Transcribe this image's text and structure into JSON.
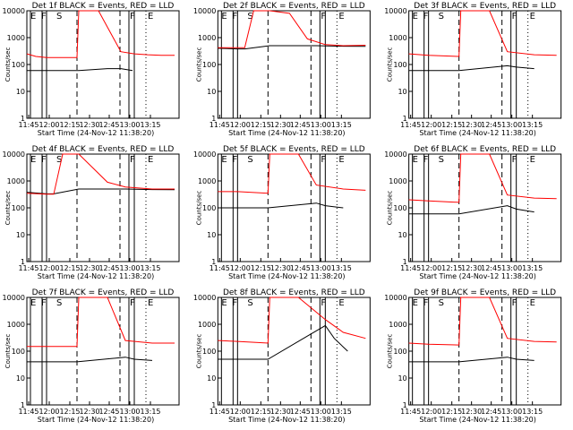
{
  "chart_data": [
    {
      "type": "line",
      "title": "Det 1f BLACK = Events, RED = LLD",
      "xlabel": "Start Time (24-Nov-12 11:38:20)",
      "ylabel": "Counts/sec",
      "x_ticks": [
        "11:45",
        "12:00",
        "12:15",
        "12:30",
        "12:45",
        "13:00",
        "13:15"
      ],
      "y_ticks": [
        "1",
        "10",
        "100",
        "1000",
        "10000"
      ],
      "ylim": [
        1,
        10000
      ],
      "log_y": true,
      "markers": [
        "E",
        "F",
        "S",
        "F",
        "E"
      ],
      "series": [
        {
          "name": "Events",
          "color": "#000000",
          "x": [
            30,
            40,
            52,
            86,
            88,
            120,
            135,
            148
          ],
          "y": [
            60,
            60,
            60,
            60,
            60,
            70,
            70,
            60
          ]
        },
        {
          "name": "LLD",
          "color": "#ff0000",
          "x": [
            30,
            40,
            52,
            86,
            88,
            110,
            135,
            150,
            165,
            180,
            195
          ],
          "y": [
            250,
            200,
            180,
            180,
            10000,
            10000,
            300,
            250,
            230,
            220,
            220
          ]
        }
      ]
    },
    {
      "type": "line",
      "title": "Det 2f BLACK = Events, RED = LLD",
      "xlabel": "Start Time (24-Nov-12 11:38:20)",
      "ylabel": "Counts/sec",
      "x_ticks": [
        "11:45",
        "12:00",
        "12:15",
        "12:30",
        "12:45",
        "13:00",
        "13:15"
      ],
      "y_ticks": [
        "1",
        "10",
        "100",
        "1000",
        "10000"
      ],
      "ylim": [
        1,
        10000
      ],
      "log_y": true,
      "markers": [
        "E",
        "F",
        "S",
        "F",
        "E"
      ],
      "series": [
        {
          "name": "Events",
          "color": "#000000",
          "x": [
            30,
            52,
            60,
            88,
            140,
            170,
            195
          ],
          "y": [
            400,
            380,
            380,
            500,
            500,
            480,
            470
          ]
        },
        {
          "name": "LLD",
          "color": "#ff0000",
          "x": [
            30,
            52,
            60,
            70,
            88,
            110,
            130,
            150,
            170,
            195
          ],
          "y": [
            420,
            420,
            420,
            10000,
            10000,
            8000,
            900,
            550,
            500,
            520
          ]
        }
      ]
    },
    {
      "type": "line",
      "title": "Det 3f BLACK = Events, RED = LLD",
      "xlabel": "Start Time (24-Nov-12 11:38:20)",
      "ylabel": "Counts/sec",
      "x_ticks": [
        "11:45",
        "12:00",
        "12:15",
        "12:30",
        "12:45",
        "13:00",
        "13:15"
      ],
      "y_ticks": [
        "1",
        "10",
        "100",
        "1000",
        "10000"
      ],
      "ylim": [
        1,
        10000
      ],
      "log_y": true,
      "markers": [
        "E",
        "F",
        "S",
        "F",
        "E"
      ],
      "series": [
        {
          "name": "Events",
          "color": "#000000",
          "x": [
            30,
            52,
            86,
            140,
            150,
            170
          ],
          "y": [
            60,
            60,
            60,
            90,
            80,
            70
          ]
        },
        {
          "name": "LLD",
          "color": "#ff0000",
          "x": [
            30,
            52,
            86,
            88,
            120,
            140,
            170,
            195
          ],
          "y": [
            250,
            220,
            200,
            10000,
            10000,
            300,
            230,
            220
          ]
        }
      ]
    },
    {
      "type": "line",
      "title": "Det 4f BLACK = Events, RED = LLD",
      "xlabel": "Start Time (24-Nov-12 11:38:20)",
      "ylabel": "Counts/sec",
      "x_ticks": [
        "11:45",
        "12:00",
        "12:15",
        "12:30",
        "12:45",
        "13:00",
        "13:15"
      ],
      "y_ticks": [
        "1",
        "10",
        "100",
        "1000",
        "10000"
      ],
      "ylim": [
        1,
        10000
      ],
      "log_y": true,
      "markers": [
        "E",
        "F",
        "S",
        "F",
        "E"
      ],
      "series": [
        {
          "name": "Events",
          "color": "#000000",
          "x": [
            30,
            52,
            60,
            88,
            140,
            170,
            195
          ],
          "y": [
            380,
            330,
            330,
            500,
            500,
            480,
            470
          ]
        },
        {
          "name": "LLD",
          "color": "#ff0000",
          "x": [
            30,
            52,
            60,
            70,
            88,
            120,
            140,
            170,
            195
          ],
          "y": [
            350,
            320,
            320,
            10000,
            10000,
            900,
            600,
            500,
            500
          ]
        }
      ]
    },
    {
      "type": "line",
      "title": "Det 5f BLACK = Events, RED = LLD",
      "xlabel": "Start Time (24-Nov-12 11:38:20)",
      "ylabel": "Counts/sec",
      "x_ticks": [
        "11:45",
        "12:00",
        "12:15",
        "12:30",
        "12:45",
        "13:00",
        "13:15"
      ],
      "y_ticks": [
        "1",
        "10",
        "100",
        "1000",
        "10000"
      ],
      "ylim": [
        1,
        10000
      ],
      "log_y": true,
      "markers": [
        "E",
        "F",
        "S",
        "F",
        "E"
      ],
      "series": [
        {
          "name": "Events",
          "color": "#000000",
          "x": [
            30,
            52,
            86,
            140,
            150,
            170
          ],
          "y": [
            100,
            100,
            100,
            150,
            120,
            100
          ]
        },
        {
          "name": "LLD",
          "color": "#ff0000",
          "x": [
            30,
            52,
            86,
            88,
            120,
            140,
            170,
            195
          ],
          "y": [
            400,
            400,
            350,
            10000,
            10000,
            700,
            500,
            450
          ]
        }
      ]
    },
    {
      "type": "line",
      "title": "Det 6f BLACK = Events, RED = LLD",
      "xlabel": "Start Time (24-Nov-12 11:38:20)",
      "ylabel": "Counts/sec",
      "x_ticks": [
        "11:45",
        "12:00",
        "12:15",
        "12:30",
        "12:45",
        "13:00",
        "13:15"
      ],
      "y_ticks": [
        "1",
        "10",
        "100",
        "1000",
        "10000"
      ],
      "ylim": [
        1,
        10000
      ],
      "log_y": true,
      "markers": [
        "E",
        "F",
        "S",
        "F",
        "E"
      ],
      "series": [
        {
          "name": "Events",
          "color": "#000000",
          "x": [
            30,
            52,
            86,
            140,
            150,
            170
          ],
          "y": [
            60,
            60,
            60,
            120,
            90,
            70
          ]
        },
        {
          "name": "LLD",
          "color": "#ff0000",
          "x": [
            30,
            52,
            86,
            88,
            120,
            140,
            170,
            195
          ],
          "y": [
            200,
            180,
            160,
            10000,
            10000,
            300,
            230,
            220
          ]
        }
      ]
    },
    {
      "type": "line",
      "title": "Det 7f BLACK = Events, RED = LLD",
      "xlabel": "Start Time (24-Nov-12 11:38:20)",
      "ylabel": "Counts/sec",
      "x_ticks": [
        "11:45",
        "12:00",
        "12:15",
        "12:30",
        "12:45",
        "13:00",
        "13:15"
      ],
      "y_ticks": [
        "1",
        "10",
        "100",
        "1000",
        "10000"
      ],
      "ylim": [
        1,
        10000
      ],
      "log_y": true,
      "markers": [
        "E",
        "F",
        "S",
        "F",
        "E"
      ],
      "series": [
        {
          "name": "Events",
          "color": "#000000",
          "x": [
            30,
            52,
            86,
            140,
            150,
            170
          ],
          "y": [
            40,
            40,
            40,
            60,
            50,
            45
          ]
        },
        {
          "name": "LLD",
          "color": "#ff0000",
          "x": [
            30,
            52,
            86,
            88,
            120,
            140,
            170,
            195
          ],
          "y": [
            150,
            150,
            150,
            10000,
            10000,
            250,
            200,
            200
          ]
        }
      ]
    },
    {
      "type": "line",
      "title": "Det 8f BLACK = Events, RED = LLD",
      "xlabel": "Start Time (24-Nov-12 11:38:20)",
      "ylabel": "Counts/sec",
      "x_ticks": [
        "11:45",
        "12:00",
        "12:15",
        "12:30",
        "12:45",
        "13:00",
        "13:15"
      ],
      "y_ticks": [
        "1",
        "10",
        "100",
        "1000",
        "10000"
      ],
      "ylim": [
        1,
        10000
      ],
      "log_y": true,
      "markers": [
        "E",
        "F",
        "S",
        "F",
        "E"
      ],
      "series": [
        {
          "name": "Events",
          "color": "#000000",
          "x": [
            30,
            52,
            86,
            150,
            160,
            175
          ],
          "y": [
            50,
            50,
            50,
            900,
            300,
            100
          ]
        },
        {
          "name": "LLD",
          "color": "#ff0000",
          "x": [
            30,
            52,
            86,
            88,
            120,
            150,
            170,
            195
          ],
          "y": [
            250,
            230,
            200,
            10000,
            10000,
            1500,
            500,
            300
          ]
        }
      ]
    },
    {
      "type": "line",
      "title": "Det 9f BLACK = Events, RED = LLD",
      "xlabel": "Start Time (24-Nov-12 11:38:20)",
      "ylabel": "Counts/sec",
      "x_ticks": [
        "11:45",
        "12:00",
        "12:15",
        "12:30",
        "12:45",
        "13:00",
        "13:15"
      ],
      "y_ticks": [
        "1",
        "10",
        "100",
        "1000",
        "10000"
      ],
      "ylim": [
        1,
        10000
      ],
      "log_y": true,
      "markers": [
        "E",
        "F",
        "S",
        "F",
        "E"
      ],
      "series": [
        {
          "name": "Events",
          "color": "#000000",
          "x": [
            30,
            52,
            86,
            140,
            150,
            170
          ],
          "y": [
            40,
            40,
            40,
            60,
            50,
            45
          ]
        },
        {
          "name": "LLD",
          "color": "#ff0000",
          "x": [
            30,
            52,
            86,
            88,
            120,
            140,
            170,
            195
          ],
          "y": [
            200,
            180,
            170,
            10000,
            10000,
            300,
            230,
            220
          ]
        }
      ]
    }
  ]
}
